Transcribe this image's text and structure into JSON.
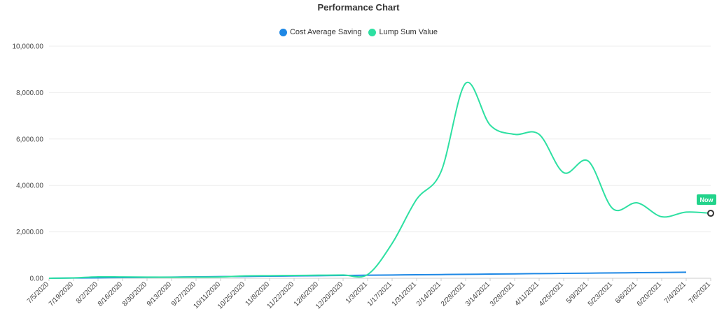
{
  "chart_data": {
    "type": "line",
    "title": "Performance Chart",
    "xlabel": "",
    "ylabel": "",
    "ylim": [
      0,
      10000
    ],
    "y_ticks": [
      "0.00",
      "2,000.00",
      "4,000.00",
      "6,000.00",
      "8,000.00",
      "10,000.00"
    ],
    "grid": true,
    "legend_position": "top-center",
    "categories": [
      "7/5/2020",
      "7/19/2020",
      "8/2/2020",
      "8/16/2020",
      "8/30/2020",
      "9/13/2020",
      "9/27/2020",
      "10/11/2020",
      "10/25/2020",
      "11/8/2020",
      "11/22/2020",
      "12/6/2020",
      "12/20/2020",
      "1/3/2021",
      "1/17/2021",
      "1/31/2021",
      "2/14/2021",
      "2/28/2021",
      "3/14/2021",
      "3/28/2021",
      "4/11/2021",
      "4/25/2021",
      "5/9/2021",
      "5/23/2021",
      "6/6/2021",
      "6/20/2021",
      "7/4/2021",
      "7/6/2021"
    ],
    "series": [
      {
        "name": "Cost Average Saving",
        "color": "#1e88e5",
        "values": [
          0,
          10,
          20,
          30,
          40,
          50,
          60,
          70,
          80,
          90,
          100,
          110,
          120,
          130,
          140,
          150,
          160,
          170,
          180,
          190,
          200,
          210,
          220,
          230,
          240,
          250,
          260,
          null
        ]
      },
      {
        "name": "Lump Sum Value",
        "color": "#2ee0a2",
        "values": [
          0,
          15,
          60,
          55,
          50,
          45,
          50,
          55,
          100,
          110,
          120,
          130,
          140,
          160,
          1500,
          3400,
          4600,
          8400,
          6600,
          6200,
          6200,
          4550,
          5050,
          3000,
          3250,
          2650,
          2850,
          2800
        ]
      }
    ],
    "annotation": {
      "label": "Now",
      "color": "#22d38b"
    }
  }
}
